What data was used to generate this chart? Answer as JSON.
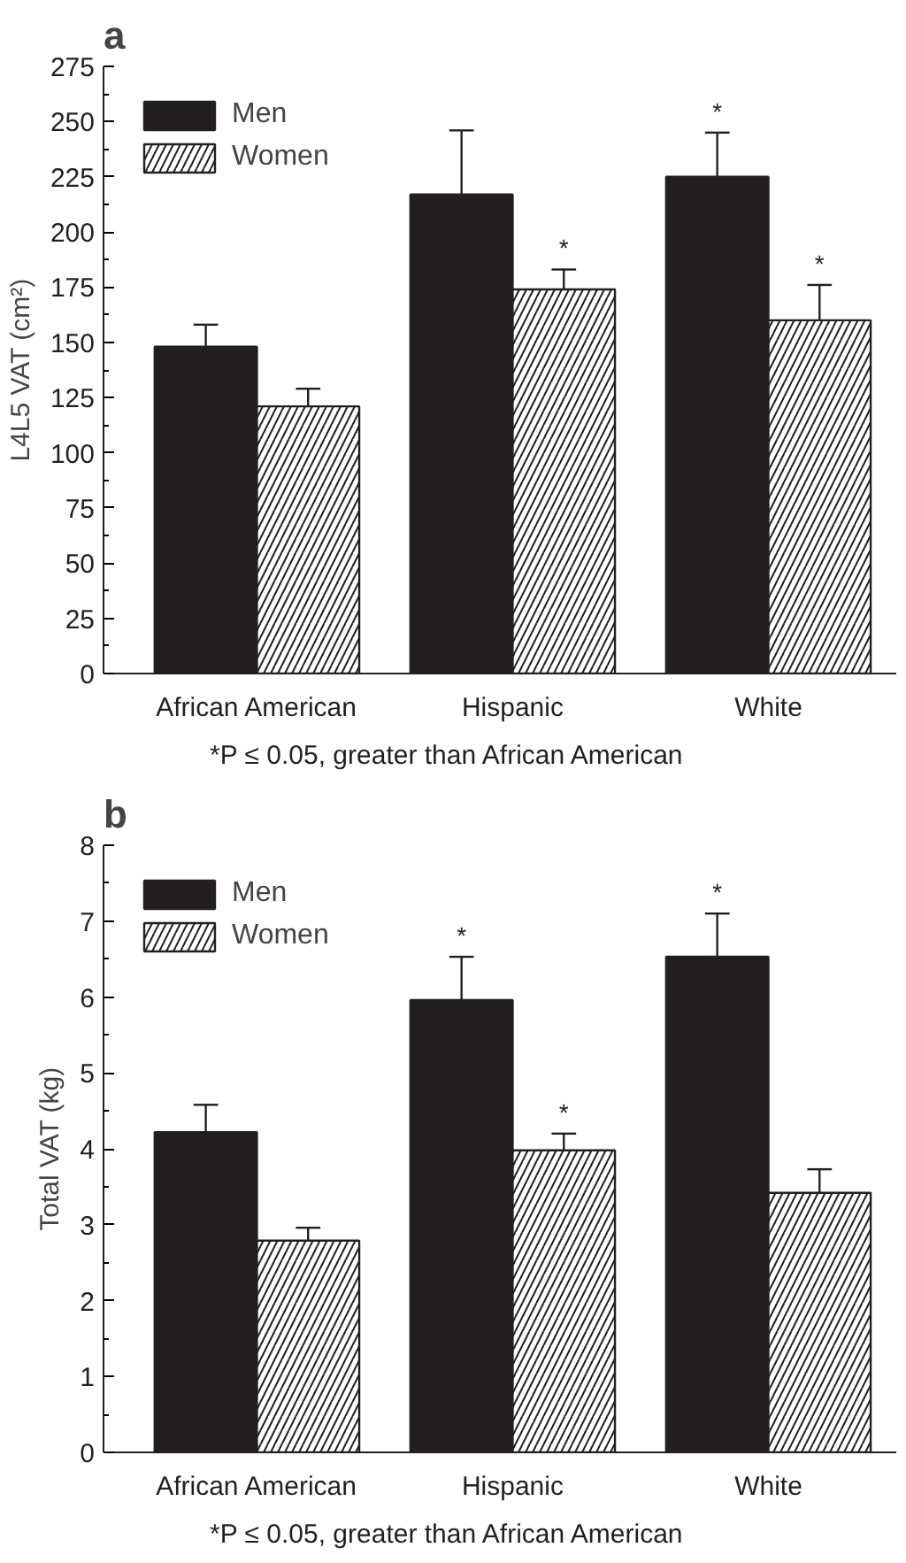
{
  "chart_data": [
    {
      "type": "bar",
      "title": "a",
      "ylabel": "L4L5 VAT (cm²)",
      "categories": [
        "African American",
        "Hispanic",
        "White"
      ],
      "series": [
        {
          "name": "Men",
          "color": "#231f20",
          "values": [
            148,
            217,
            225
          ],
          "errors": [
            [
              148,
              158
            ],
            [
              217,
              246
            ],
            [
              225,
              245
            ]
          ],
          "value_labels": [
            null,
            null,
            "*"
          ]
        },
        {
          "name": "Women",
          "color": "#ffffff",
          "values": [
            121,
            174,
            160
          ],
          "errors": [
            [
              121,
              129
            ],
            [
              174,
              183
            ],
            [
              160,
              176
            ]
          ],
          "value_labels": [
            null,
            "*",
            "*"
          ]
        }
      ],
      "ylim": [
        0,
        275
      ],
      "yticks": [
        0,
        25,
        50,
        75,
        100,
        125,
        150,
        175,
        200,
        225,
        250,
        275
      ],
      "legend": "top left",
      "annotations": [
        "*P ≤ 0.05, greater than African American"
      ]
    },
    {
      "type": "bar",
      "title": "b",
      "ylabel": "Total VAT (kg)",
      "categories": [
        "African American",
        "Hispanic",
        "White"
      ],
      "series": [
        {
          "name": "Men",
          "color": "#231f20",
          "values": [
            4.22,
            5.96,
            6.53
          ],
          "errors": [
            [
              4.22,
              4.58
            ],
            [
              5.96,
              6.53
            ],
            [
              6.53,
              7.1
            ]
          ],
          "value_labels": [
            null,
            "*",
            "*"
          ]
        },
        {
          "name": "Women",
          "color": "#ffffff",
          "values": [
            2.79,
            3.98,
            3.42
          ],
          "errors": [
            [
              2.79,
              2.96
            ],
            [
              3.98,
              4.2
            ],
            [
              3.42,
              3.73
            ]
          ],
          "value_labels": [
            null,
            "*",
            null
          ]
        }
      ],
      "ylim": [
        0,
        8
      ],
      "yticks": [
        0,
        1,
        2,
        3,
        4,
        5,
        6,
        7,
        8
      ],
      "legend": "top left",
      "annotations": [
        "*P ≤ 0.05, greater than African American"
      ]
    }
  ]
}
